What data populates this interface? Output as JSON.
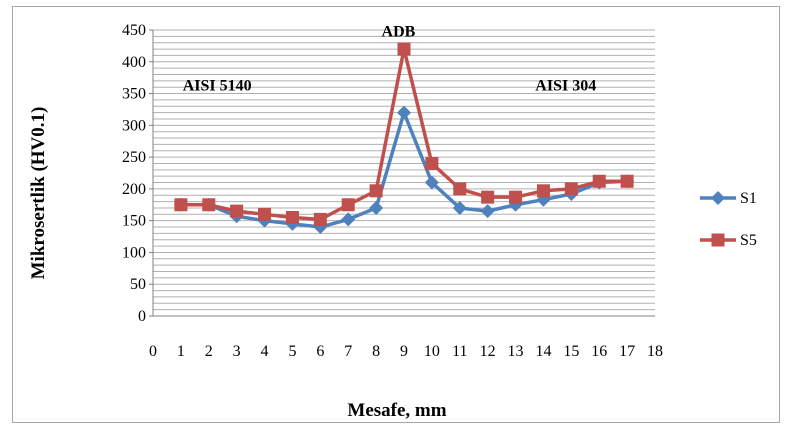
{
  "chart_data": {
    "type": "line",
    "xlabel": "Mesafe, mm",
    "ylabel": "Mikrosertlik  (HV0.1)",
    "xlim": [
      0,
      18
    ],
    "ylim": [
      0,
      450
    ],
    "x_ticks": [
      0,
      1,
      2,
      3,
      4,
      5,
      6,
      7,
      8,
      9,
      10,
      11,
      12,
      13,
      14,
      15,
      16,
      17,
      18
    ],
    "y_ticks": [
      0,
      50,
      100,
      150,
      200,
      250,
      300,
      350,
      400,
      450
    ],
    "grid": "horizontal",
    "legend_position": "right",
    "annotations": [
      {
        "text": "AISI 5140",
        "x": 2.3,
        "y": 355
      },
      {
        "text": "ADB",
        "x": 8.8,
        "y": 440
      },
      {
        "text": "AISI 304",
        "x": 14.8,
        "y": 355
      }
    ],
    "x": [
      1,
      2,
      3,
      4,
      5,
      6,
      7,
      8,
      9,
      10,
      11,
      12,
      13,
      14,
      15,
      16,
      17
    ],
    "series": [
      {
        "name": "S1",
        "color": "#4f81bd",
        "marker": "diamond",
        "values": [
          175,
          175,
          157,
          150,
          145,
          140,
          152,
          170,
          320,
          210,
          170,
          165,
          175,
          183,
          192,
          210,
          212
        ]
      },
      {
        "name": "S5",
        "color": "#c0504d",
        "marker": "square",
        "values": [
          175,
          175,
          165,
          160,
          155,
          152,
          175,
          197,
          420,
          240,
          200,
          187,
          187,
          197,
          200,
          212,
          212
        ]
      }
    ]
  }
}
